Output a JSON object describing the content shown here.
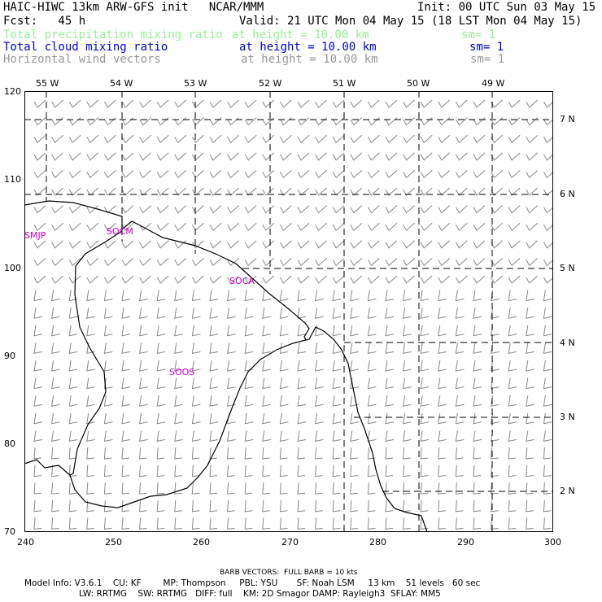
{
  "header": {
    "model_title": "HAIC-HIWC 13km ARW-GFS init   NCAR/MMM",
    "forecast": "Fcst:   45 h",
    "init": "Init: 00 UTC Sun 03 May 15",
    "valid": "Valid: 21 UTC Mon 04 May 15 (18 LST Mon 04 May 15)"
  },
  "fields": [
    {
      "name": "Total precipitation mixing ratio",
      "level": "at height = 10.00 km",
      "sm": "sm= 1",
      "color": "#99ee99"
    },
    {
      "name": "Total cloud mixing ratio",
      "level": "at height = 10.00 km",
      "sm": "sm= 1",
      "color": "#0000cc"
    },
    {
      "name": "Horizontal wind vectors",
      "level": "at height = 10.00 km",
      "sm": "sm= 1",
      "color": "#999999"
    }
  ],
  "map": {
    "longitude_labels": [
      "55 W",
      "54 W",
      "53 W",
      "52 W",
      "51 W",
      "50 W",
      "49 W"
    ],
    "latitude_labels": [
      "7 N",
      "6 N",
      "5 N",
      "4 N",
      "3 N",
      "2 N"
    ],
    "x_axis_ticks": [
      "240",
      "250",
      "260",
      "270",
      "280",
      "290",
      "300"
    ],
    "y_axis_ticks": [
      "70",
      "80",
      "90",
      "100",
      "110",
      "120"
    ],
    "x_range": [
      240,
      300
    ],
    "y_range": [
      70,
      120
    ],
    "stations": [
      "SMJP",
      "SOCM",
      "SOCA",
      "SOOS"
    ],
    "colors": {
      "coastline": "#000000",
      "gridlines": "#000000",
      "stations": "#cc00cc",
      "barbs": "#888888"
    }
  },
  "footer": {
    "barb_note": "BARB VECTORS:  FULL BARB = 10 kts",
    "line1": "Model Info: V3.6.1    CU: KF        MP: Thompson     PBL: YSU       SF: Noah LSM     13 km    51 levels   60 sec",
    "line2": "LW: RRTMG    SW: RRTMG   DIFF: full    KM: 2D Smagor DAMP: Rayleigh3  SFLAY: MM5"
  }
}
